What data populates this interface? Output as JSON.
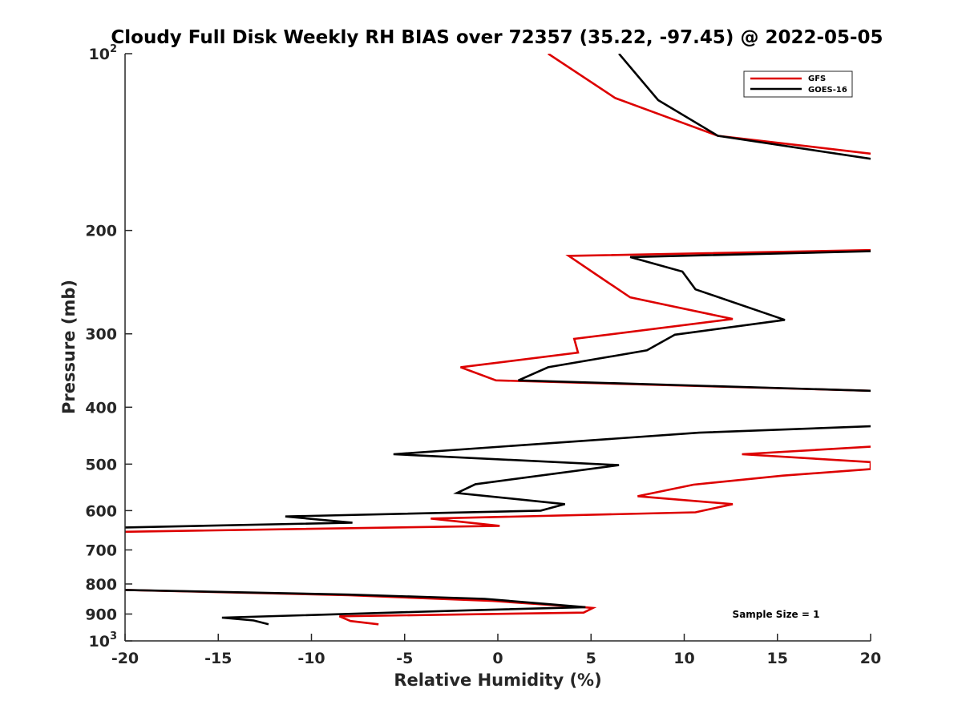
{
  "chart_data": {
    "type": "line",
    "title": "Cloudy Full Disk Weekly RH BIAS over 72357 (35.22, -97.45) @ 2022-05-05",
    "xlabel": "Relative Humidity (%)",
    "ylabel": "Pressure (mb)",
    "xlim": [
      -20,
      20
    ],
    "ylim": [
      100,
      1000
    ],
    "yscale": "log",
    "y_reversed": true,
    "x_ticks": [
      -20,
      -15,
      -10,
      -5,
      0,
      5,
      10,
      15,
      20
    ],
    "x_tick_labels": [
      "-20",
      "-15",
      "-10",
      "-5",
      "0",
      "5",
      "10",
      "15",
      "20"
    ],
    "y_ticks": [
      100,
      200,
      300,
      400,
      500,
      600,
      700,
      800,
      900,
      1000
    ],
    "y_tick_labels": [
      {
        "base": "10",
        "sup": "2"
      },
      {
        "base": "200",
        "sup": ""
      },
      {
        "base": "300",
        "sup": ""
      },
      {
        "base": "400",
        "sup": ""
      },
      {
        "base": "500",
        "sup": ""
      },
      {
        "base": "600",
        "sup": ""
      },
      {
        "base": "700",
        "sup": ""
      },
      {
        "base": "800",
        "sup": ""
      },
      {
        "base": "900",
        "sup": ""
      },
      {
        "base": "10",
        "sup": "3"
      }
    ],
    "grid": false,
    "legend_position": "top-right",
    "annotation": "Sample Size = 1",
    "series": [
      {
        "name": "GFS",
        "color": "#dd0000",
        "segments": [
          [
            [
              2.7,
              100
            ],
            [
              6.3,
              119
            ],
            [
              11.8,
              138
            ],
            [
              20,
              148
            ]
          ],
          [
            [
              20,
              216
            ],
            [
              3.8,
              221
            ],
            [
              5.3,
              238
            ],
            [
              7.1,
              260
            ],
            [
              12.6,
              283
            ],
            [
              4.1,
              306
            ],
            [
              4.3,
              323
            ],
            [
              -2.0,
              342
            ],
            [
              -0.1,
              360
            ],
            [
              20,
              375
            ]
          ],
          [
            [
              20,
              467
            ],
            [
              13.1,
              481
            ],
            [
              20,
              496
            ],
            [
              20,
              510
            ],
            [
              15.3,
              523
            ],
            [
              10.5,
              542
            ],
            [
              7.5,
              567
            ],
            [
              12.6,
              585
            ],
            [
              10.6,
              604
            ],
            [
              -3.6,
              619
            ],
            [
              0.1,
              637
            ],
            [
              -20,
              652
            ]
          ],
          [
            [
              -20,
              819
            ],
            [
              -8,
              836
            ],
            [
              -0.3,
              855
            ],
            [
              4.6,
              876
            ],
            [
              5.1,
              879
            ],
            [
              4.6,
              895
            ],
            [
              -8.5,
              908
            ],
            [
              -7.9,
              925
            ],
            [
              -6.4,
              937
            ]
          ]
        ]
      },
      {
        "name": "GOES-16",
        "color": "#000000",
        "segments": [
          [
            [
              6.5,
              100
            ],
            [
              8.6,
              120
            ],
            [
              11.8,
              138
            ],
            [
              20,
              151
            ]
          ],
          [
            [
              20,
              217
            ],
            [
              7.1,
              222
            ],
            [
              9.9,
              235
            ],
            [
              10.6,
              252
            ],
            [
              15.4,
              284
            ],
            [
              9.5,
              301
            ],
            [
              8.0,
              320
            ],
            [
              2.7,
              342
            ],
            [
              1.1,
              360
            ],
            [
              20,
              375
            ]
          ],
          [
            [
              20,
              431
            ],
            [
              10.8,
              442
            ],
            [
              -5.6,
              481
            ],
            [
              6.5,
              502
            ],
            [
              -1.2,
              541
            ],
            [
              -2.2,
              560
            ],
            [
              3.6,
              585
            ],
            [
              2.3,
              600
            ],
            [
              -11.4,
              614
            ],
            [
              -7.8,
              629
            ],
            [
              -20,
              641
            ]
          ],
          [
            [
              -20,
              819
            ],
            [
              -8,
              834
            ],
            [
              -0.7,
              848
            ],
            [
              4.7,
              876
            ],
            [
              -1.5,
              887
            ],
            [
              -14.8,
              913
            ],
            [
              -13.1,
              923
            ],
            [
              -12.3,
              937
            ]
          ]
        ]
      }
    ]
  }
}
